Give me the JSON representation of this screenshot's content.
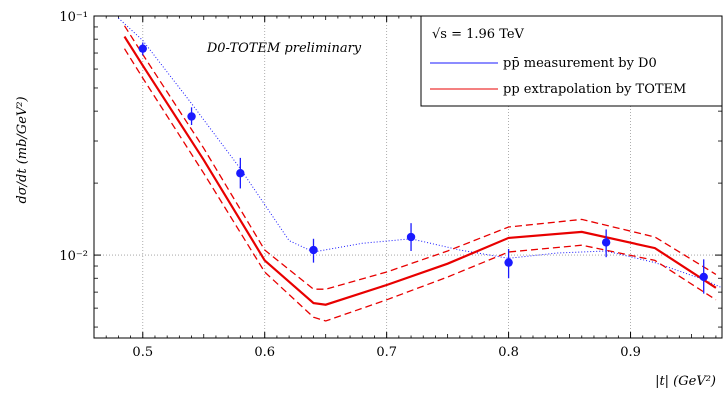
{
  "chart_data": {
    "type": "line",
    "title": "",
    "annotation": "D0-TOTEM preliminary",
    "xlabel": "|t|   (GeV²)",
    "ylabel": "dσ/dt   (mb/GeV²)",
    "xlim": [
      0.46,
      0.975
    ],
    "ylim": [
      0.0045,
      0.1
    ],
    "y_scale": "log",
    "x_ticks": [
      0.5,
      0.6,
      0.7,
      0.8,
      0.9
    ],
    "x_tick_labels": [
      "0.5",
      "0.6",
      "0.7",
      "0.8",
      "0.9"
    ],
    "y_ticks": [
      0.01,
      0.1
    ],
    "y_tick_labels": [
      "10⁻²",
      "10⁻¹"
    ],
    "grid": true,
    "legend": {
      "placement": "top-right",
      "header": "√s = 1.96 TeV",
      "entries": [
        {
          "label": "pp̄ measurement by D0",
          "color": "#1a1aff"
        },
        {
          "label": "pp extrapolation by TOTEM",
          "color": "#e80000"
        }
      ]
    },
    "series": [
      {
        "name": "pp̄ measurement by D0",
        "style": "points-with-errors",
        "color": "#1a1aff",
        "x": [
          0.5,
          0.54,
          0.58,
          0.64,
          0.72,
          0.8,
          0.88,
          0.96
        ],
        "y": [
          0.073,
          0.038,
          0.022,
          0.0105,
          0.0119,
          0.0093,
          0.0113,
          0.0081
        ],
        "y_err_low": [
          0.0045,
          0.003,
          0.003,
          0.0012,
          0.0015,
          0.0013,
          0.0015,
          0.0012
        ],
        "y_err_high": [
          0.0045,
          0.0035,
          0.0035,
          0.0012,
          0.0017,
          0.0013,
          0.0015,
          0.0015
        ]
      },
      {
        "name": "D0 fit",
        "style": "dotted",
        "color": "#1a1aff",
        "x": [
          0.48,
          0.5,
          0.54,
          0.58,
          0.62,
          0.64,
          0.68,
          0.72,
          0.76,
          0.8,
          0.84,
          0.88,
          0.92,
          0.96,
          0.975
        ],
        "y": [
          0.098,
          0.079,
          0.043,
          0.023,
          0.0115,
          0.0103,
          0.0112,
          0.0117,
          0.0105,
          0.0097,
          0.0102,
          0.0104,
          0.0093,
          0.0079,
          0.0073
        ]
      },
      {
        "name": "pp extrapolation by TOTEM",
        "style": "solid-thick",
        "color": "#e80000",
        "x": [
          0.485,
          0.5,
          0.55,
          0.6,
          0.64,
          0.65,
          0.7,
          0.75,
          0.8,
          0.86,
          0.92,
          0.97
        ],
        "y": [
          0.082,
          0.062,
          0.025,
          0.0095,
          0.0063,
          0.0062,
          0.0075,
          0.0092,
          0.0118,
          0.0125,
          0.0107,
          0.0073
        ]
      },
      {
        "name": "TOTEM upper band",
        "style": "dashed",
        "color": "#e80000",
        "x": [
          0.485,
          0.5,
          0.55,
          0.6,
          0.64,
          0.65,
          0.7,
          0.75,
          0.8,
          0.86,
          0.92,
          0.97
        ],
        "y": [
          0.091,
          0.069,
          0.028,
          0.0105,
          0.0072,
          0.0072,
          0.0085,
          0.0104,
          0.0131,
          0.0141,
          0.0119,
          0.0083
        ]
      },
      {
        "name": "TOTEM lower band",
        "style": "dashed",
        "color": "#e80000",
        "x": [
          0.485,
          0.5,
          0.55,
          0.6,
          0.64,
          0.65,
          0.7,
          0.75,
          0.8,
          0.86,
          0.92,
          0.97
        ],
        "y": [
          0.073,
          0.055,
          0.022,
          0.0085,
          0.0055,
          0.0053,
          0.0065,
          0.0081,
          0.0103,
          0.011,
          0.0095,
          0.0065
        ]
      }
    ]
  }
}
